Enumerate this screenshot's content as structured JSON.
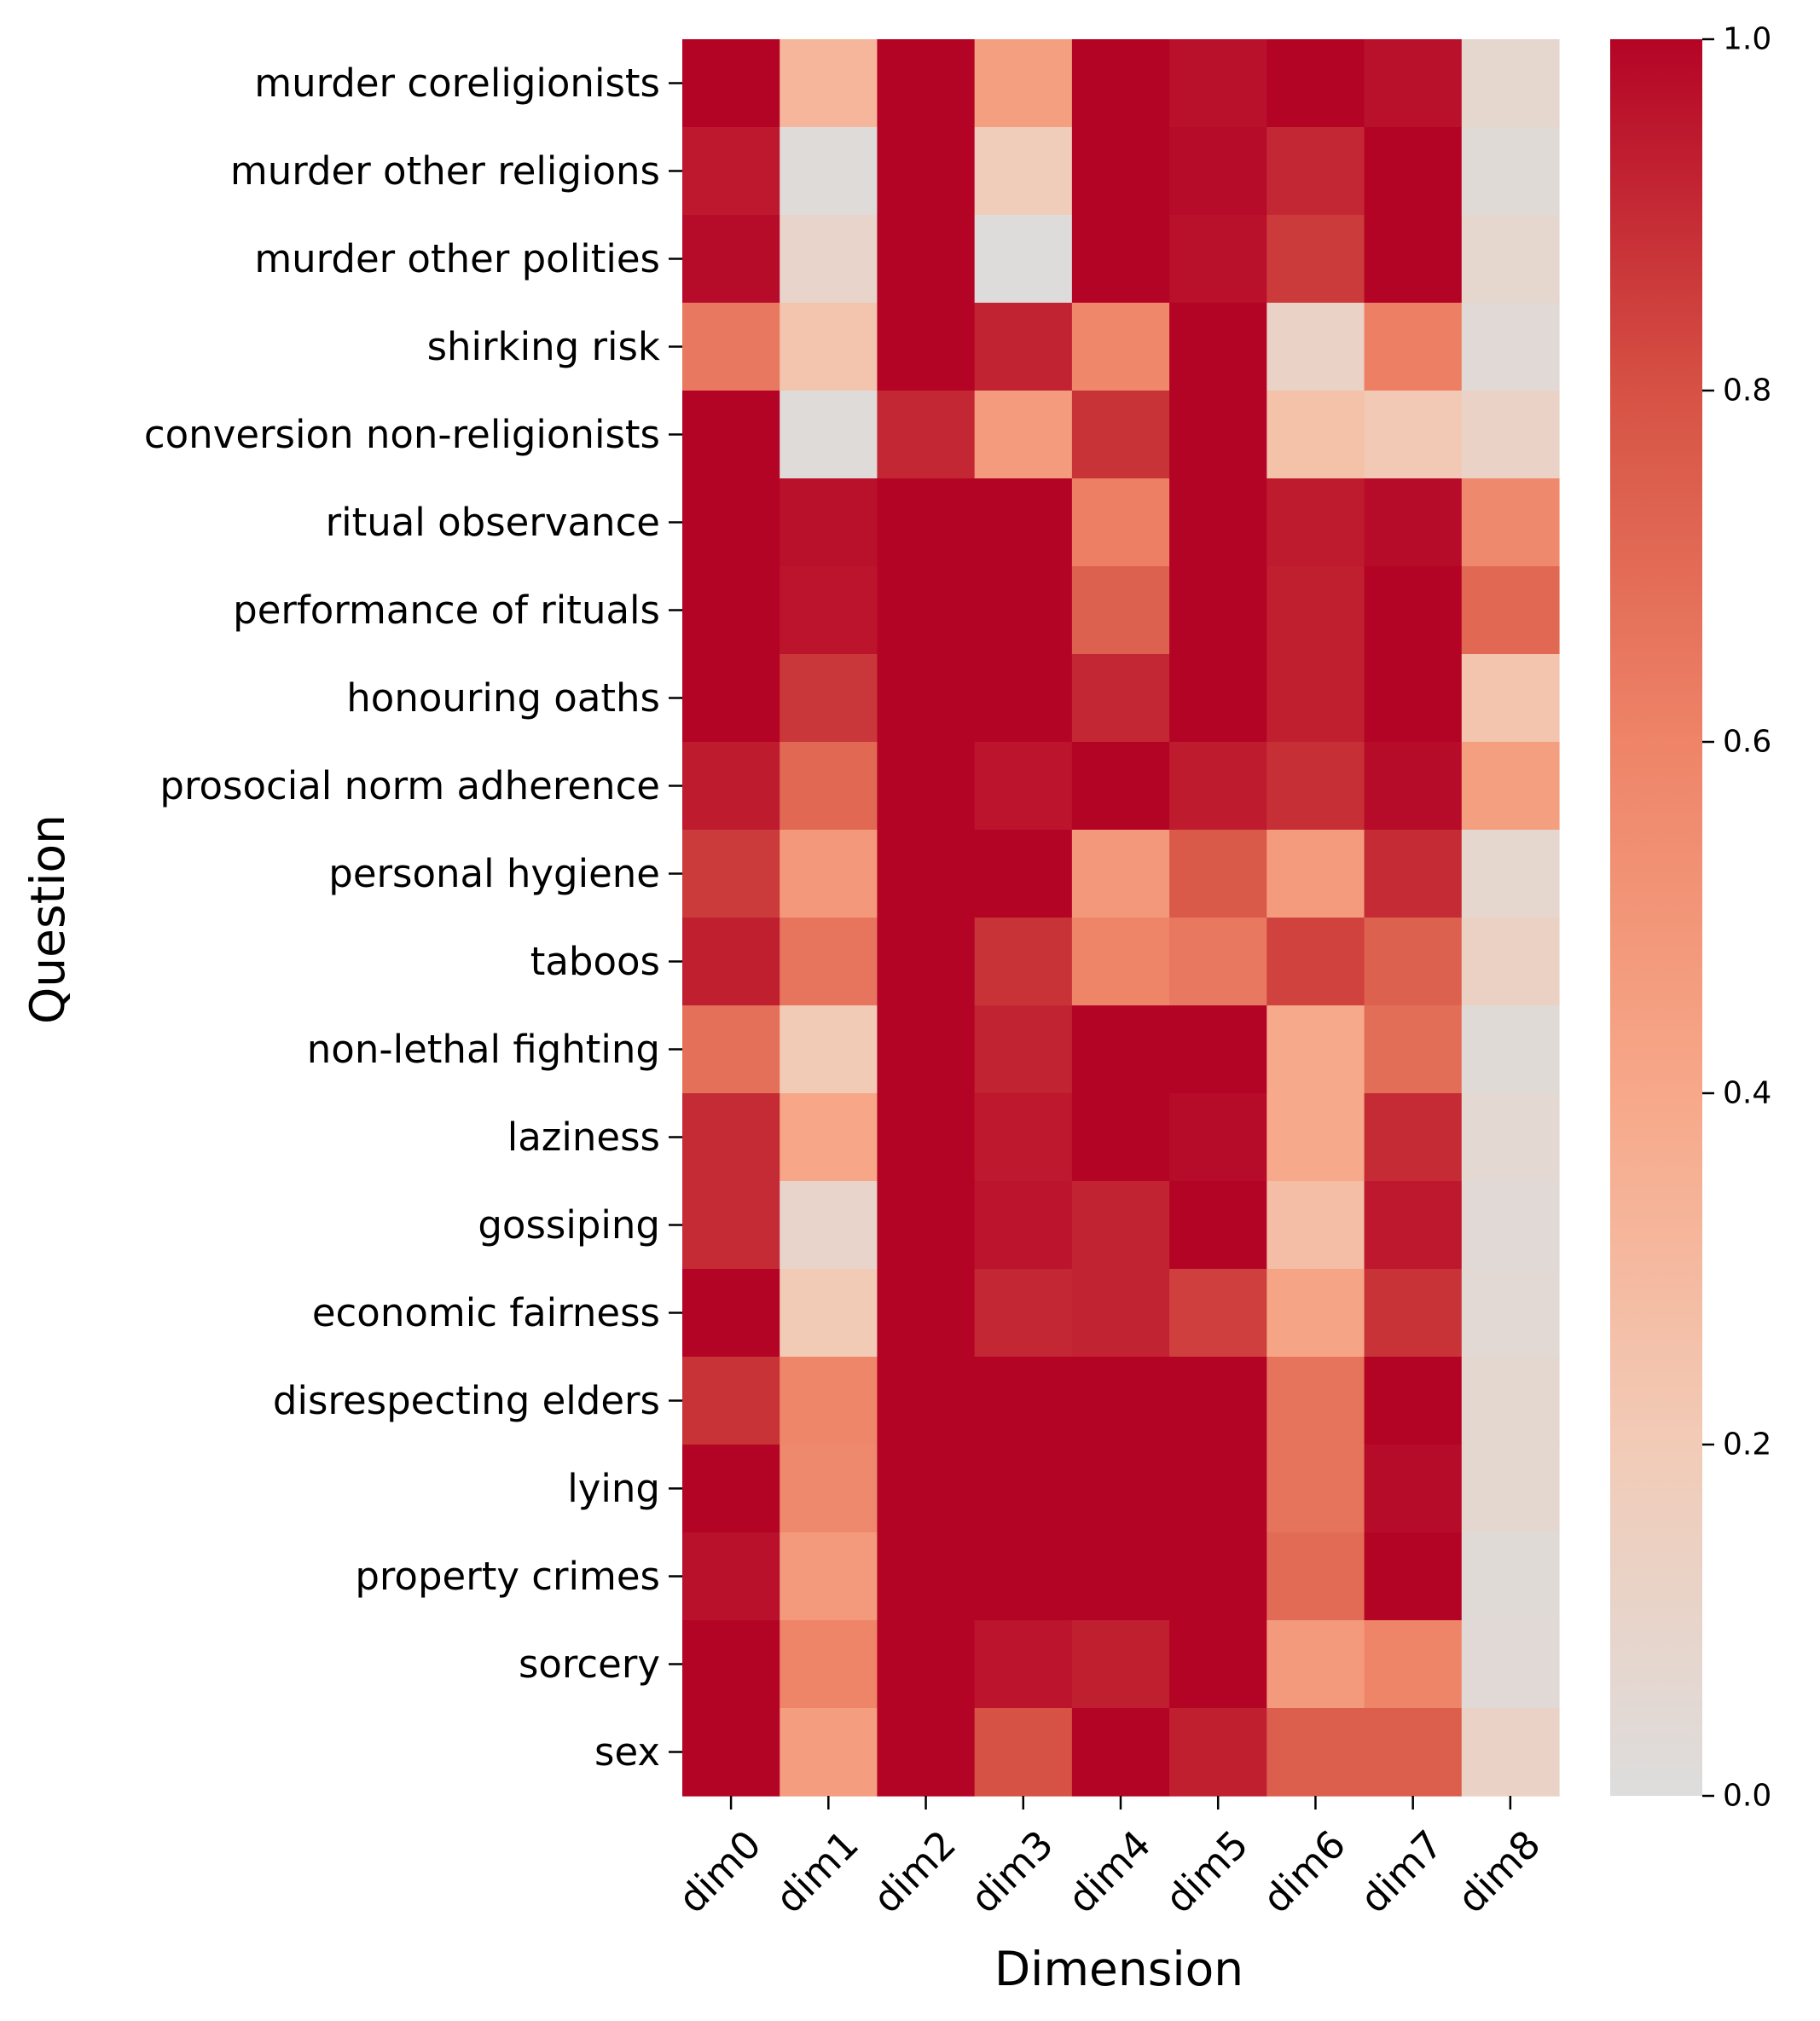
{
  "chart_data": {
    "type": "heatmap",
    "title": "",
    "xlabel": "Dimension",
    "ylabel": "Question",
    "x_categories": [
      "dim0",
      "dim1",
      "dim2",
      "dim3",
      "dim4",
      "dim5",
      "dim6",
      "dim7",
      "dim8"
    ],
    "y_categories": [
      "murder coreligionists",
      "murder other religions",
      "murder other polities",
      "shirking risk",
      "conversion non-religionists",
      "ritual observance",
      "performance of rituals",
      "honouring oaths",
      "prosocial norm adherence",
      "personal hygiene",
      "taboos",
      "non-lethal fighting",
      "laziness",
      "gossiping",
      "economic fairness",
      "disrespecting elders",
      "lying",
      "property crimes",
      "sorcery",
      "sex"
    ],
    "values": [
      [
        1.0,
        0.32,
        1.0,
        0.45,
        1.0,
        0.97,
        1.0,
        0.97,
        0.08
      ],
      [
        0.95,
        0.02,
        1.0,
        0.18,
        1.0,
        0.98,
        0.91,
        1.0,
        0.03
      ],
      [
        0.98,
        0.1,
        1.0,
        0.01,
        1.0,
        0.97,
        0.86,
        1.0,
        0.08
      ],
      [
        0.65,
        0.24,
        1.0,
        0.92,
        0.58,
        1.0,
        0.12,
        0.62,
        0.04
      ],
      [
        1.0,
        0.02,
        0.91,
        0.47,
        0.88,
        1.0,
        0.26,
        0.21,
        0.12
      ],
      [
        1.0,
        0.97,
        1.0,
        1.0,
        0.62,
        1.0,
        0.94,
        0.98,
        0.57
      ],
      [
        1.0,
        0.96,
        1.0,
        1.0,
        0.74,
        1.0,
        0.93,
        1.0,
        0.71
      ],
      [
        1.0,
        0.87,
        1.0,
        1.0,
        0.91,
        1.0,
        0.93,
        1.0,
        0.24
      ],
      [
        0.94,
        0.71,
        1.0,
        0.96,
        1.0,
        0.94,
        0.89,
        0.98,
        0.45
      ],
      [
        0.86,
        0.49,
        1.0,
        1.0,
        0.49,
        0.77,
        0.47,
        0.9,
        0.08
      ],
      [
        0.93,
        0.66,
        1.0,
        0.88,
        0.6,
        0.65,
        0.84,
        0.74,
        0.13
      ],
      [
        0.68,
        0.2,
        1.0,
        0.92,
        1.0,
        1.0,
        0.39,
        0.69,
        0.03
      ],
      [
        0.9,
        0.41,
        1.0,
        0.95,
        1.0,
        0.98,
        0.39,
        0.9,
        0.06
      ],
      [
        0.9,
        0.1,
        1.0,
        0.96,
        0.92,
        1.0,
        0.28,
        0.95,
        0.04
      ],
      [
        1.0,
        0.2,
        1.0,
        0.91,
        0.92,
        0.85,
        0.42,
        0.88,
        0.05
      ],
      [
        0.88,
        0.59,
        1.0,
        1.0,
        1.0,
        1.0,
        0.67,
        1.0,
        0.07
      ],
      [
        1.0,
        0.57,
        1.0,
        1.0,
        1.0,
        1.0,
        0.67,
        0.98,
        0.07
      ],
      [
        0.97,
        0.48,
        1.0,
        1.0,
        1.0,
        1.0,
        0.7,
        1.0,
        0.03
      ],
      [
        1.0,
        0.6,
        1.0,
        0.96,
        0.93,
        1.0,
        0.48,
        0.6,
        0.04
      ],
      [
        1.0,
        0.46,
        1.0,
        0.8,
        1.0,
        0.93,
        0.75,
        0.75,
        0.12
      ]
    ],
    "colorbar": {
      "min": 0.0,
      "max": 1.0,
      "ticks": [
        0.0,
        0.2,
        0.4,
        0.6,
        0.8,
        1.0
      ],
      "tick_labels": [
        "0.0",
        "0.2",
        "0.4",
        "0.6",
        "0.8",
        "1.0"
      ],
      "colormap": "coolwarm (upper half)",
      "color_stops": [
        "#dddddd",
        "#f2cbb7",
        "#f7a889",
        "#ee8468",
        "#d65244",
        "#b40426"
      ]
    }
  }
}
